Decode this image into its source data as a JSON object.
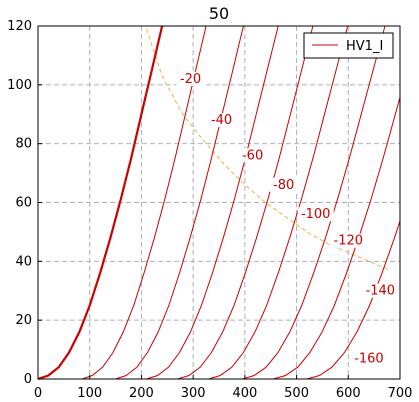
{
  "chart_data": {
    "type": "line",
    "title": "50",
    "xlabel": "",
    "ylabel": "",
    "xlim": [
      0,
      700
    ],
    "ylim": [
      0,
      120
    ],
    "xticks": [
      0,
      100,
      200,
      300,
      400,
      500,
      600,
      700
    ],
    "yticks": [
      0,
      20,
      40,
      60,
      80,
      100,
      120
    ],
    "grid": true,
    "legend": {
      "placement": "top-right",
      "entries": [
        "HV1_I"
      ]
    },
    "colors": {
      "curve": "#cc0000",
      "envelope": "#f0b040",
      "grid": "#b0b0b0"
    },
    "main_series": {
      "name": "HV1_I",
      "x": [
        0,
        20,
        40,
        60,
        80,
        100,
        120,
        140,
        160,
        180,
        200,
        220,
        240
      ],
      "y": [
        0,
        1.2,
        4,
        9,
        16,
        25,
        36,
        48,
        61,
        75,
        90,
        105,
        120
      ]
    },
    "grid_curves": [
      {
        "label": "-20",
        "x0": 85,
        "label_x": 295,
        "label_y": 101
      },
      {
        "label": "-40",
        "x0": 150,
        "label_x": 355,
        "label_y": 87
      },
      {
        "label": "-60",
        "x0": 210,
        "label_x": 415,
        "label_y": 75
      },
      {
        "label": "-80",
        "x0": 270,
        "label_x": 475,
        "label_y": 65
      },
      {
        "label": "-100",
        "x0": 330,
        "label_x": 537,
        "label_y": 55
      },
      {
        "label": "-120",
        "x0": 395,
        "label_x": 600,
        "label_y": 46
      },
      {
        "label": "-140",
        "x0": 455,
        "label_x": 662,
        "label_y": 29
      },
      {
        "label": "-160",
        "x0": 520,
        "label_x": 640,
        "label_y": 6
      }
    ],
    "envelope": {
      "x": [
        210,
        240,
        280,
        320,
        360,
        400,
        440,
        480,
        520,
        560,
        600,
        640,
        680
      ],
      "y": [
        119,
        103,
        90,
        81,
        73,
        66,
        60,
        55,
        50,
        46,
        43,
        40,
        37
      ]
    }
  }
}
